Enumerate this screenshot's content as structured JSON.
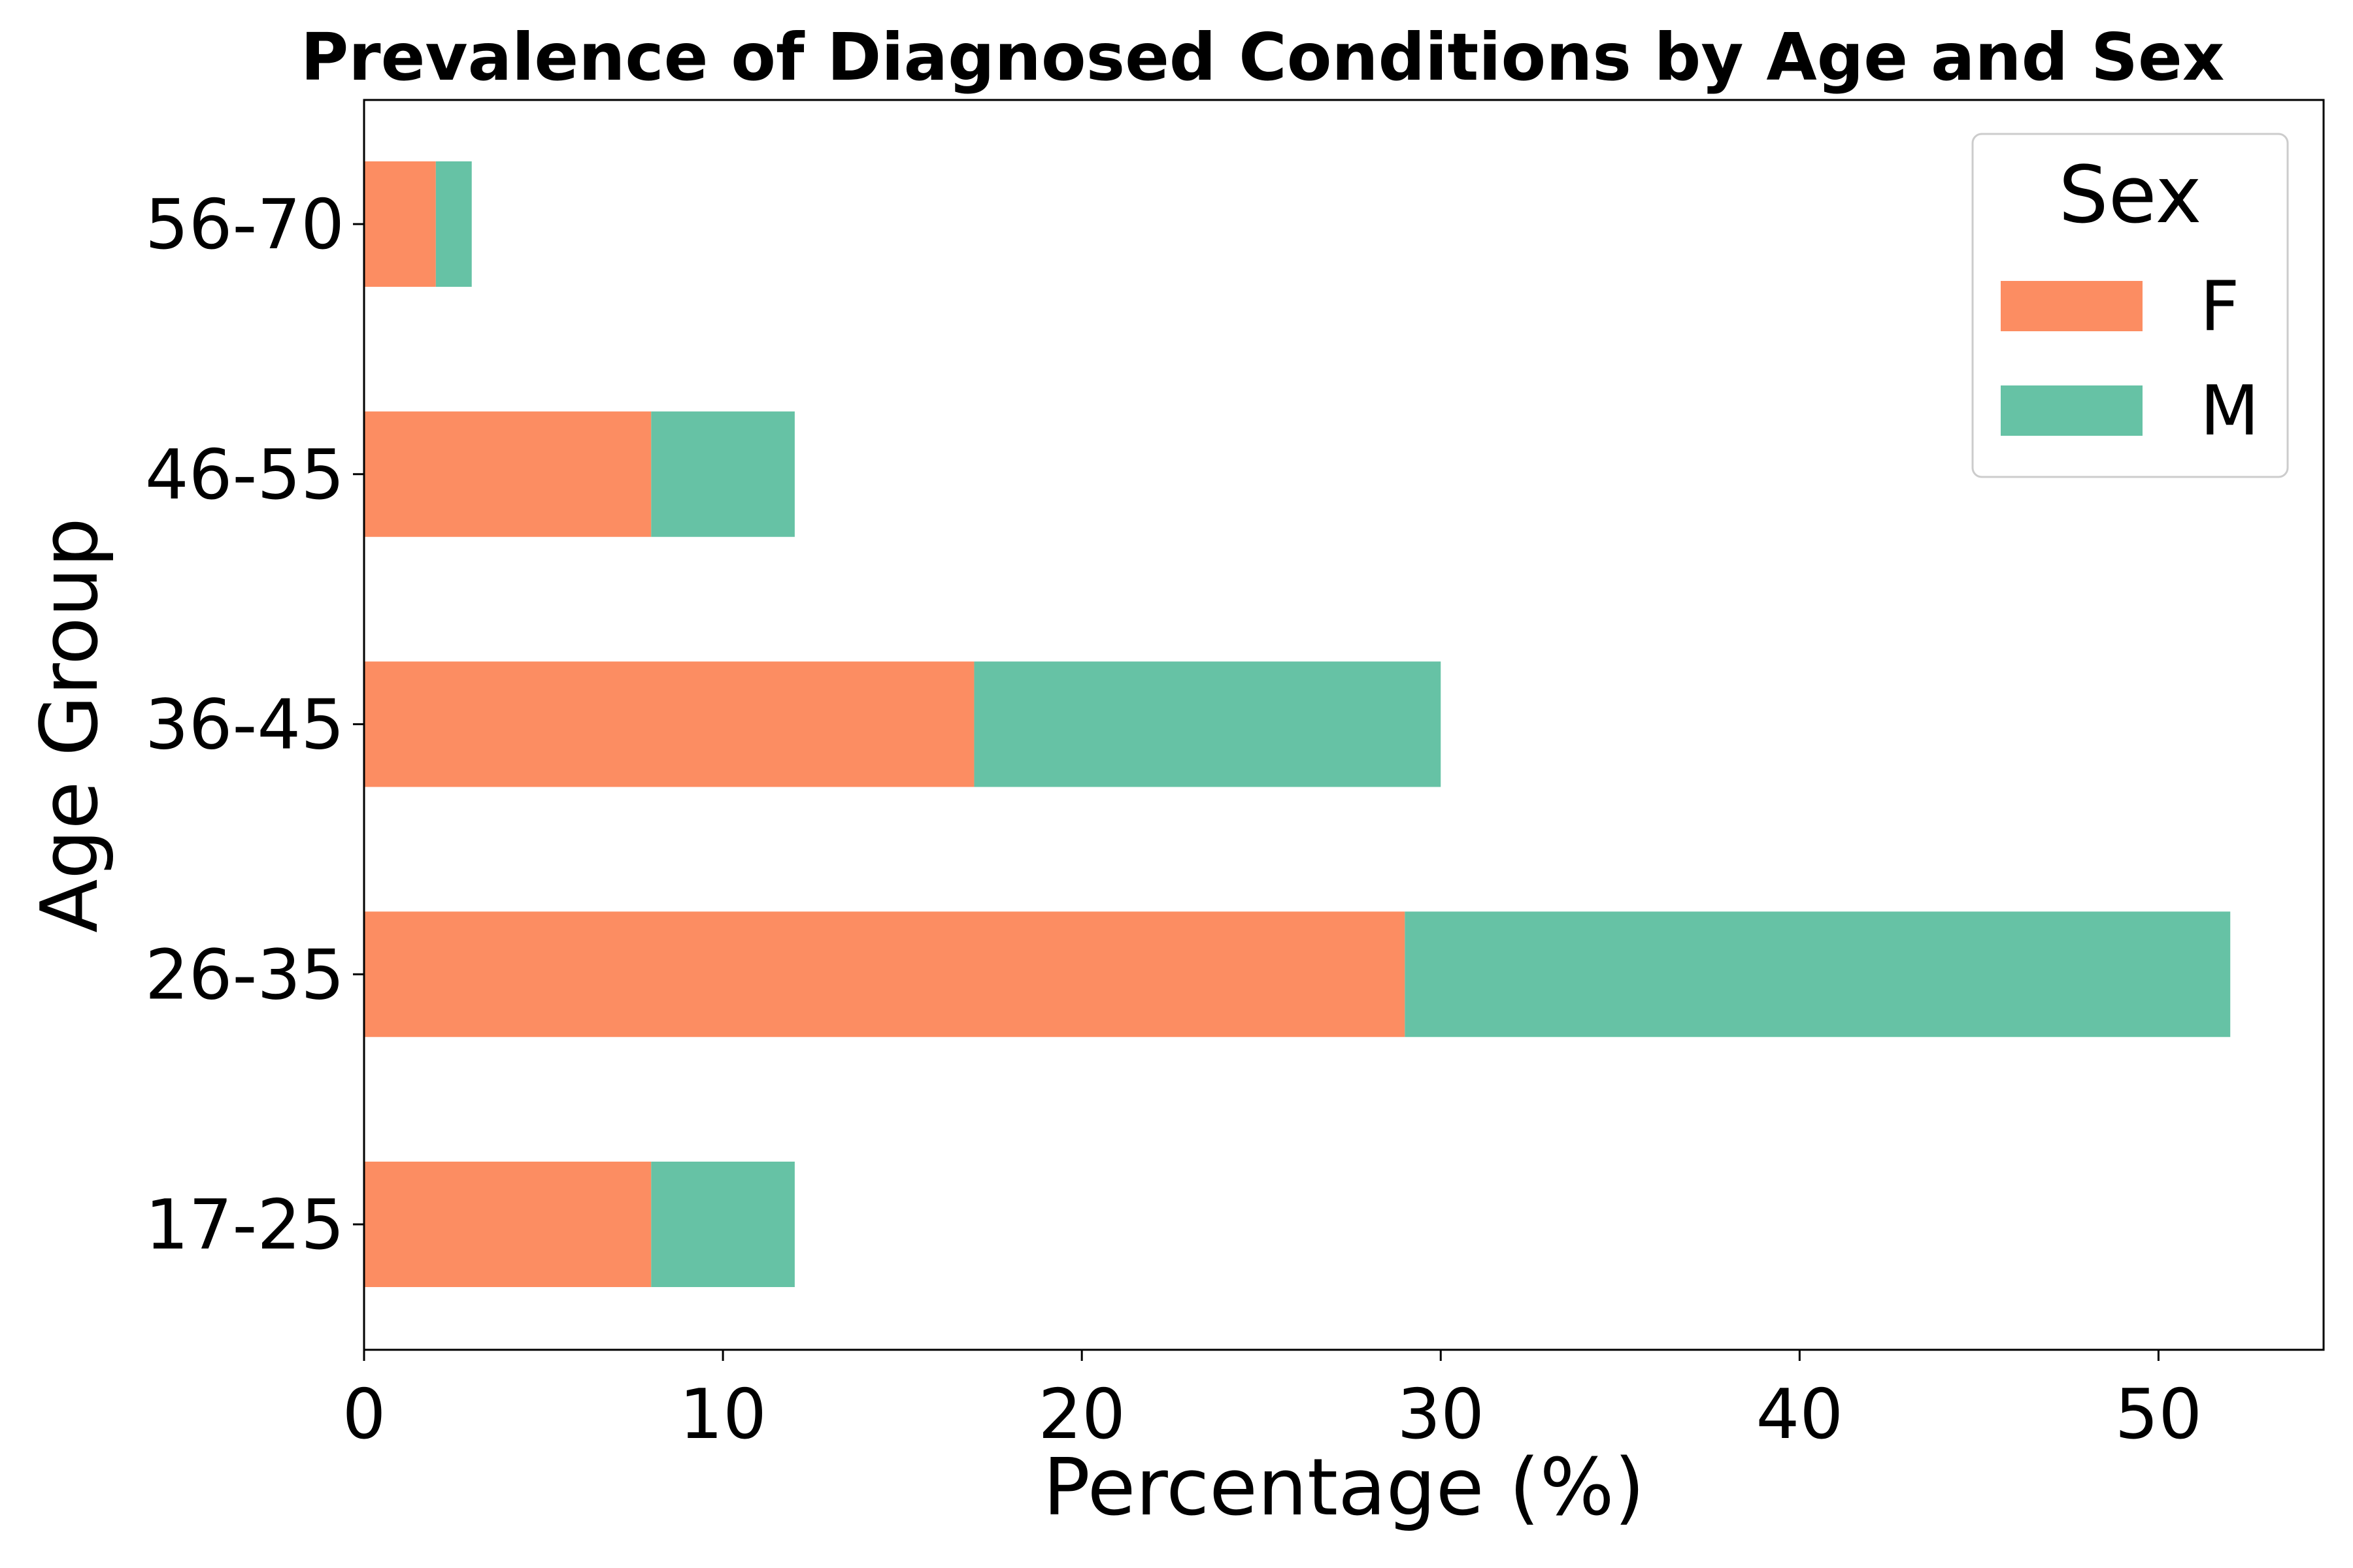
{
  "chart_data": {
    "type": "bar",
    "orientation": "horizontal",
    "stacked": true,
    "title": "Prevalence of Diagnosed Conditions by Age and Sex",
    "xlabel": "Percentage (%)",
    "ylabel": "Age Group",
    "categories": [
      "17-25",
      "26-35",
      "36-45",
      "46-55",
      "56-70"
    ],
    "series": [
      {
        "name": "F",
        "color": "#fc8d62",
        "values": [
          8,
          29,
          17,
          8,
          2
        ]
      },
      {
        "name": "M",
        "color": "#66c2a5",
        "values": [
          4,
          23,
          13,
          4,
          1
        ]
      }
    ],
    "xlim": [
      0,
      54.6
    ],
    "xticks": [
      0,
      10,
      20,
      30,
      40,
      50
    ],
    "grid": false,
    "legend": {
      "title": "Sex",
      "position": "top-right"
    }
  }
}
